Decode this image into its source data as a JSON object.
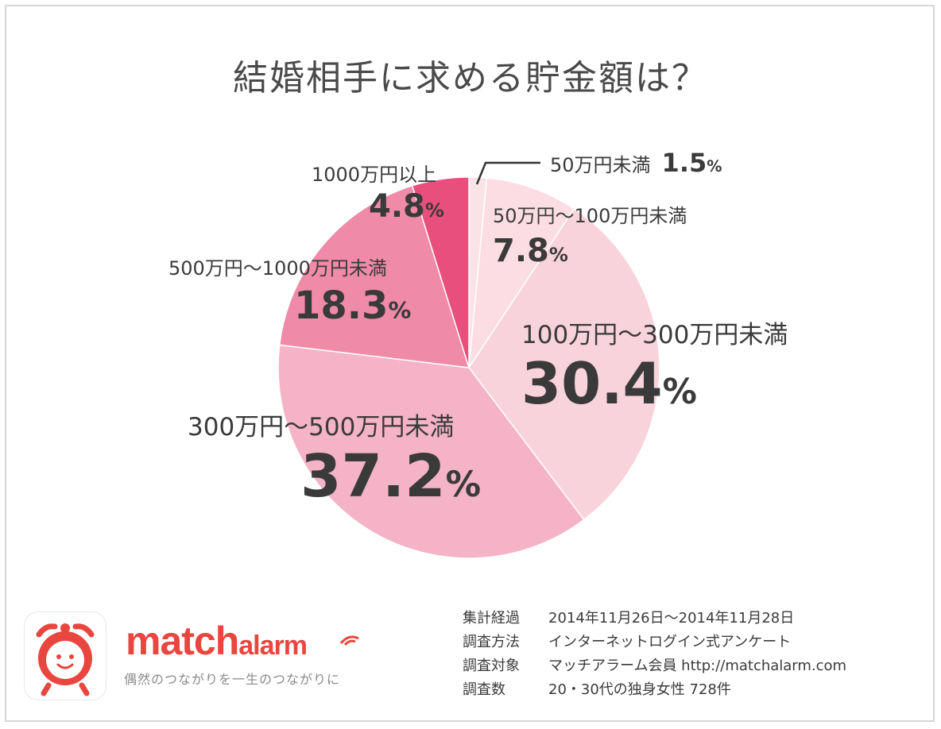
{
  "chart_data": {
    "type": "pie",
    "title": "結婚相手に求める貯金額は？",
    "slices": [
      {
        "label": "50万円未満",
        "value": 1.5,
        "display": "1.5",
        "color": "#f9e3e6"
      },
      {
        "label": "50万円〜100万円未満",
        "value": 7.8,
        "display": "7.8",
        "color": "#fbdde3"
      },
      {
        "label": "100万円〜300万円未満",
        "value": 30.4,
        "display": "30.4",
        "color": "#f9d3dc"
      },
      {
        "label": "300万円〜500万円未満",
        "value": 37.2,
        "display": "37.2",
        "color": "#f5b3c8"
      },
      {
        "label": "500万円〜1000万円未満",
        "value": 18.3,
        "display": "18.3",
        "color": "#ef8aa9"
      },
      {
        "label": "1000万円以上",
        "value": 4.8,
        "display": "4.8",
        "color": "#e84f7d"
      }
    ],
    "unit": "%",
    "start_angle_deg": 0,
    "direction": "clockwise"
  },
  "brand": {
    "name_main": "match",
    "name_sub": "alarm",
    "tagline": "偶然のつながりを一生のつながりに",
    "logo_icon": "alarm-clock-face-icon",
    "color": "#e8463f"
  },
  "survey_info": [
    {
      "key": "集計経過",
      "value": "2014年11月26日〜2014年11月28日"
    },
    {
      "key": "調査方法",
      "value": "インターネットログイン式アンケート"
    },
    {
      "key": "調査対象",
      "value": "マッチアラーム会員 http://matchalarm.com"
    },
    {
      "key": "調査数",
      "value": "20・30代の独身女性 728件"
    }
  ]
}
